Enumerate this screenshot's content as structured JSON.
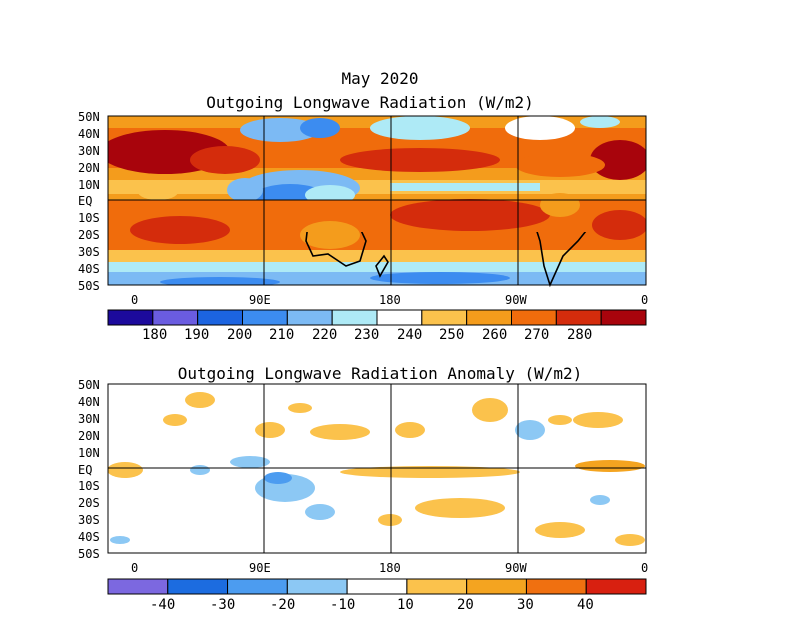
{
  "title": "May 2020",
  "panels": [
    {
      "title": "Outgoing Longwave Radiation (W/m2)",
      "lat_labels": [
        "50N",
        "40N",
        "30N",
        "20N",
        "10N",
        "EQ",
        "10S",
        "20S",
        "30S",
        "40S",
        "50S"
      ],
      "lon_labels": [
        "0",
        "90E",
        "180",
        "90W",
        "0"
      ],
      "colorbar_labels": [
        "180",
        "190",
        "200",
        "210",
        "220",
        "230",
        "240",
        "250",
        "260",
        "270",
        "280"
      ],
      "colorbar_colors": [
        "#1c0a9c",
        "#6a5ce0",
        "#1c64e0",
        "#3c8cf0",
        "#7cbaf4",
        "#aeeaf6",
        "#ffffff",
        "#fbc24c",
        "#f49c1c",
        "#f06c0c",
        "#d42c0c",
        "#a8040c"
      ]
    },
    {
      "title": "Outgoing Longwave Radiation Anomaly (W/m2)",
      "lat_labels": [
        "50N",
        "40N",
        "30N",
        "20N",
        "10N",
        "EQ",
        "10S",
        "20S",
        "30S",
        "40S",
        "50S"
      ],
      "lon_labels": [
        "0",
        "90E",
        "180",
        "90W",
        "0"
      ],
      "colorbar_labels": [
        "-40",
        "-30",
        "-20",
        "-10",
        "10",
        "20",
        "30",
        "40"
      ],
      "colorbar_colors": [
        "#7c68e0",
        "#1c6ce0",
        "#4c9cf0",
        "#8cc8f4",
        "#ffffff",
        "#fbc24c",
        "#f4a420",
        "#f07010",
        "#d82010"
      ]
    }
  ]
}
